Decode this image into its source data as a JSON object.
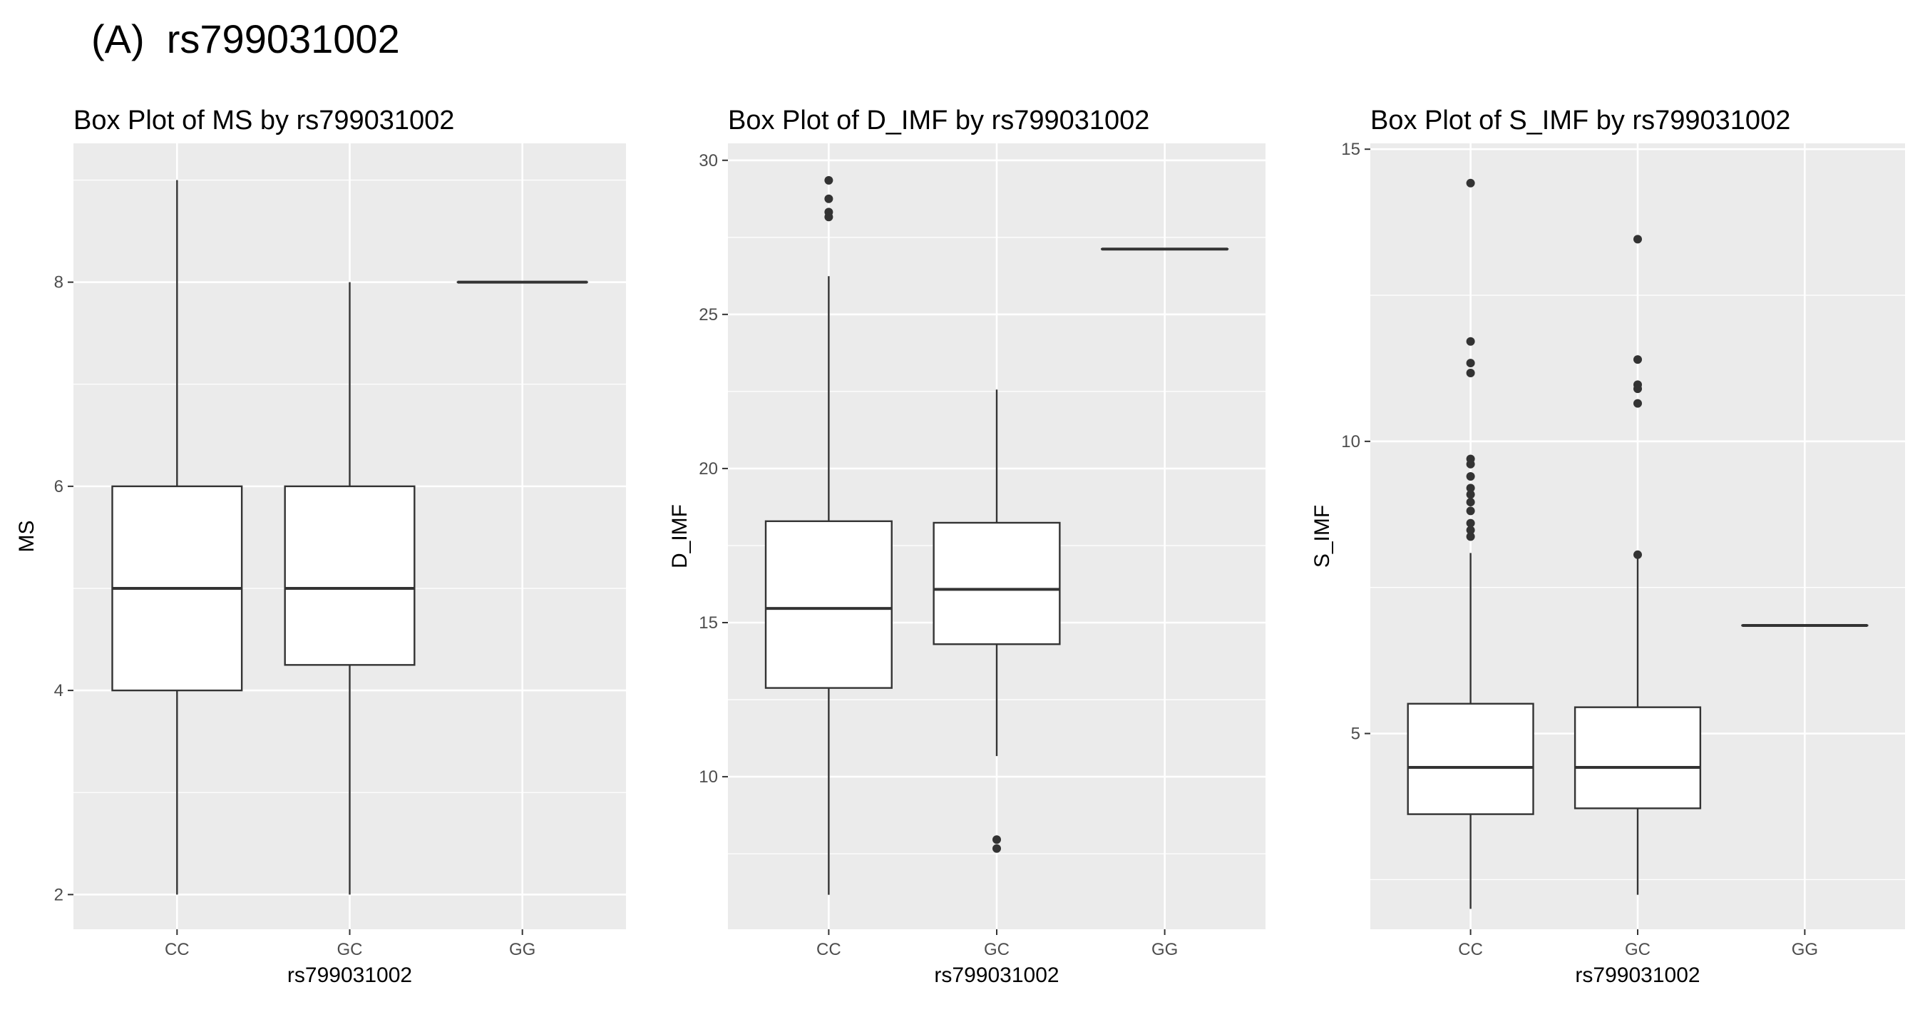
{
  "figure_label": "(A)  rs799031002",
  "chart_data": [
    {
      "type": "box",
      "title": "Box Plot of MS by rs799031002",
      "xlabel": "rs799031002",
      "ylabel": "MS",
      "categories": [
        "CC",
        "GC",
        "GG"
      ],
      "yticks": [
        2,
        4,
        6,
        8
      ],
      "tick_labels": [
        "2",
        "4",
        "6",
        "8"
      ],
      "ylim": [
        1.66,
        9.36
      ],
      "grid": true,
      "boxes": [
        {
          "category": "CC",
          "lower_whisker": 2,
          "q1": 4,
          "median": 5,
          "q3": 6,
          "upper_whisker": 9,
          "outliers": []
        },
        {
          "category": "GC",
          "lower_whisker": 2,
          "q1": 4.25,
          "median": 5,
          "q3": 6,
          "upper_whisker": 8,
          "outliers": []
        },
        {
          "category": "GG",
          "lower_whisker": 8,
          "q1": 8,
          "median": 8,
          "q3": 8,
          "upper_whisker": 8,
          "outliers": []
        }
      ]
    },
    {
      "type": "box",
      "title": "Box Plot of D_IMF by rs799031002",
      "xlabel": "rs799031002",
      "ylabel": "D_IMF",
      "categories": [
        "CC",
        "GC",
        "GG"
      ],
      "yticks": [
        10,
        15,
        20,
        25,
        30
      ],
      "tick_labels": [
        "10",
        "15",
        "20",
        "25",
        "30"
      ],
      "ylim": [
        5.05,
        30.55
      ],
      "grid": true,
      "boxes": [
        {
          "category": "CC",
          "lower_whisker": 6.17,
          "q1": 12.88,
          "median": 15.46,
          "q3": 18.29,
          "upper_whisker": 26.24,
          "outliers": [
            29.35,
            28.75,
            28.32,
            28.16
          ]
        },
        {
          "category": "GC",
          "lower_whisker": 10.67,
          "q1": 14.3,
          "median": 16.08,
          "q3": 18.24,
          "upper_whisker": 22.56,
          "outliers": [
            7.96,
            7.67
          ]
        },
        {
          "category": "GG",
          "lower_whisker": 27.12,
          "q1": 27.12,
          "median": 27.12,
          "q3": 27.12,
          "upper_whisker": 27.12,
          "outliers": []
        }
      ]
    },
    {
      "type": "box",
      "title": "Box Plot of S_IMF by rs799031002",
      "xlabel": "rs799031002",
      "ylabel": "S_IMF",
      "categories": [
        "CC",
        "GC",
        "GG"
      ],
      "yticks": [
        5,
        10,
        15
      ],
      "tick_labels": [
        "5",
        "10",
        "15"
      ],
      "ylim": [
        1.65,
        15.1
      ],
      "grid": true,
      "boxes": [
        {
          "category": "CC",
          "lower_whisker": 2.0,
          "q1": 3.62,
          "median": 4.42,
          "q3": 5.51,
          "upper_whisker": 8.09,
          "outliers": [
            14.42,
            11.71,
            11.34,
            11.17,
            9.7,
            9.61,
            9.4,
            9.2,
            9.09,
            8.96,
            8.81,
            8.6,
            8.48,
            8.37
          ]
        },
        {
          "category": "GC",
          "lower_whisker": 2.24,
          "q1": 3.72,
          "median": 4.42,
          "q3": 5.45,
          "upper_whisker": 8.0,
          "outliers": [
            13.46,
            11.4,
            10.97,
            10.9,
            10.65,
            8.06
          ]
        },
        {
          "category": "GG",
          "lower_whisker": 6.85,
          "q1": 6.85,
          "median": 6.85,
          "q3": 6.85,
          "upper_whisker": 6.85,
          "outliers": []
        }
      ]
    }
  ],
  "colors": {
    "panel_bg": "#ebebeb",
    "grid": "#ffffff",
    "box_fill": "#ffffff",
    "line": "#333333",
    "tick_text": "#4d4d4d"
  }
}
